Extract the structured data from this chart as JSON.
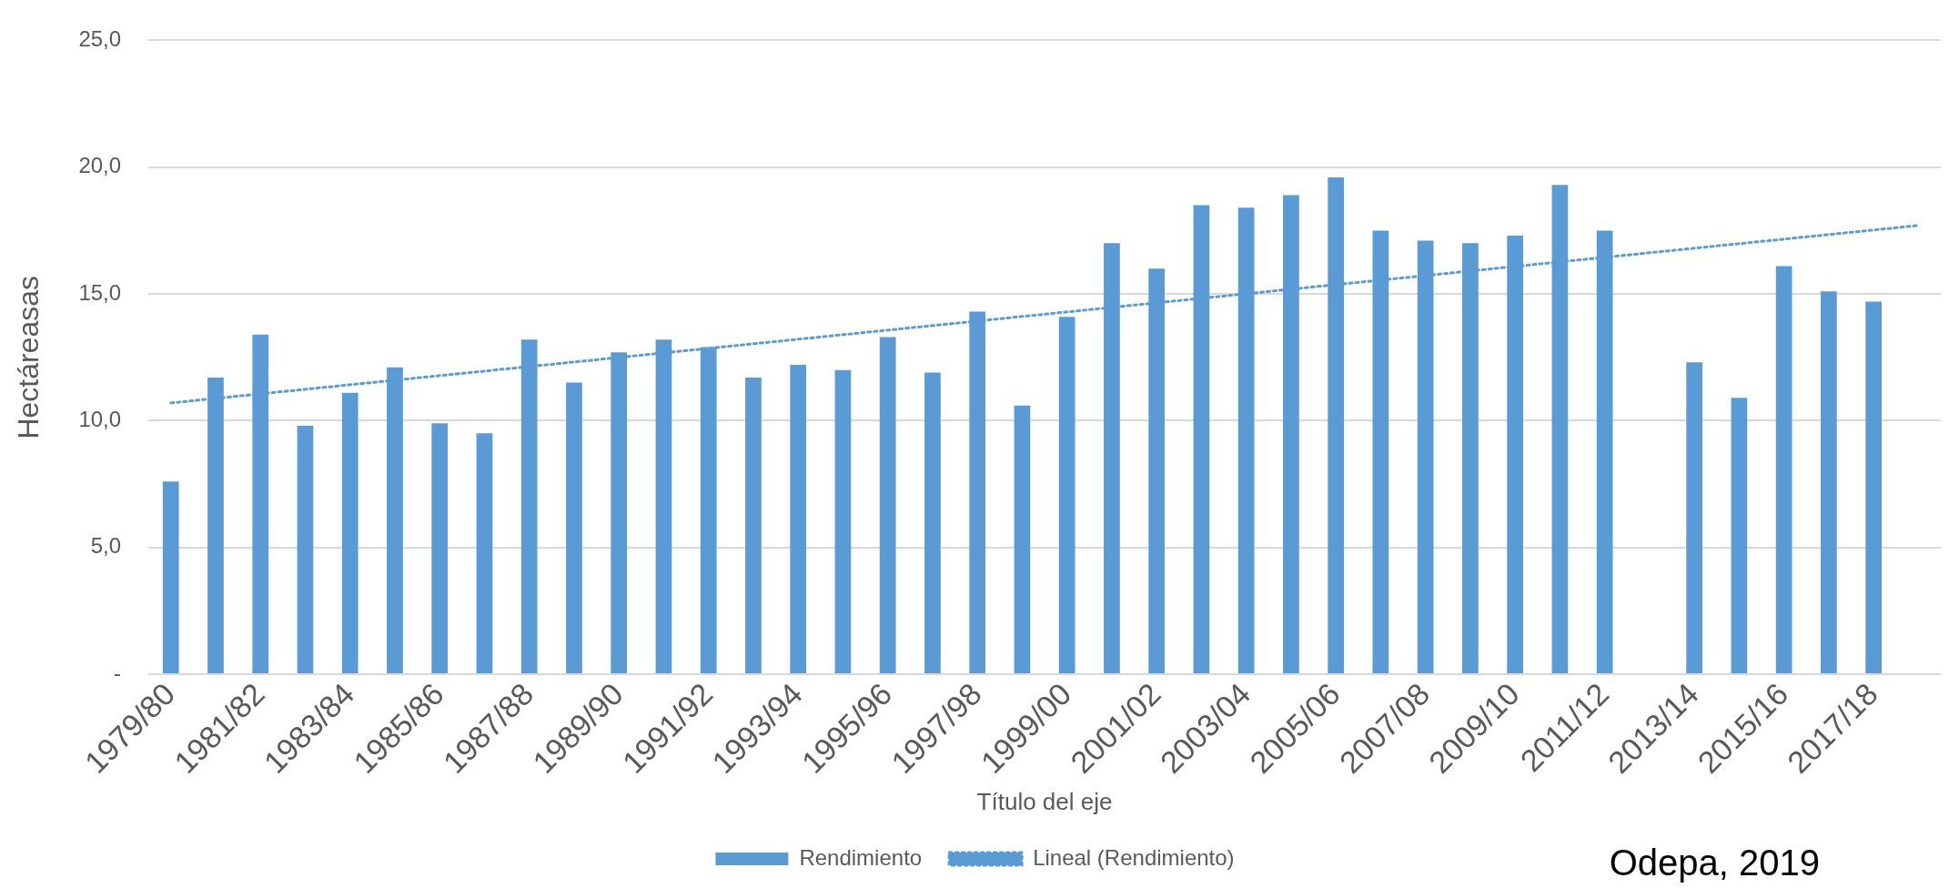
{
  "chart_data": {
    "type": "bar",
    "xlabel": "Título del eje",
    "ylabel": "Hectáreasas",
    "categories": [
      "1979/80",
      null,
      "1981/82",
      null,
      "1983/84",
      null,
      "1985/86",
      null,
      "1987/88",
      null,
      "1989/90",
      null,
      "1991/92",
      null,
      "1993/94",
      null,
      "1995/96",
      null,
      "1997/98",
      null,
      "1999/00",
      null,
      "2001/02",
      null,
      "2003/04",
      null,
      "2005/06",
      null,
      "2007/08",
      null,
      "2009/10",
      null,
      "2011/12",
      null,
      "2013/14",
      null,
      "2015/16",
      null,
      "2017/18",
      null
    ],
    "series": [
      {
        "name": "Rendimiento",
        "color": "#5b9bd5",
        "values": [
          7.6,
          11.7,
          13.4,
          9.8,
          11.1,
          12.1,
          9.9,
          9.5,
          13.2,
          11.5,
          12.7,
          13.2,
          12.9,
          11.7,
          12.2,
          12.0,
          13.3,
          11.9,
          14.3,
          10.6,
          14.1,
          17.0,
          16.0,
          18.5,
          18.4,
          18.9,
          19.6,
          17.5,
          17.1,
          17.0,
          17.3,
          19.3,
          17.5,
          null,
          12.3,
          10.9,
          16.1,
          15.1,
          14.7,
          null
        ]
      },
      {
        "name": "Lineal (Rendimiento)",
        "type": "line",
        "color": "#5b9bd5",
        "line_style": "dotted",
        "marker": "none",
        "values": [
          10.7,
          null,
          null,
          null,
          null,
          null,
          null,
          null,
          null,
          null,
          null,
          null,
          null,
          null,
          null,
          null,
          null,
          null,
          null,
          null,
          null,
          null,
          null,
          null,
          null,
          null,
          null,
          null,
          null,
          null,
          null,
          null,
          null,
          null,
          null,
          null,
          null,
          null,
          null,
          17.7
        ]
      }
    ],
    "ylim": [
      0,
      25
    ],
    "yticks": [
      {
        "value": 0,
        "label": "-"
      },
      {
        "value": 5,
        "label": "5,0"
      },
      {
        "value": 10,
        "label": "10,0"
      },
      {
        "value": 15,
        "label": "15,0"
      },
      {
        "value": 20,
        "label": "20,0"
      },
      {
        "value": 25,
        "label": "25,0"
      }
    ],
    "grid": "y",
    "legend": "bottom",
    "annotations": [
      "Odepa, 2019"
    ]
  }
}
